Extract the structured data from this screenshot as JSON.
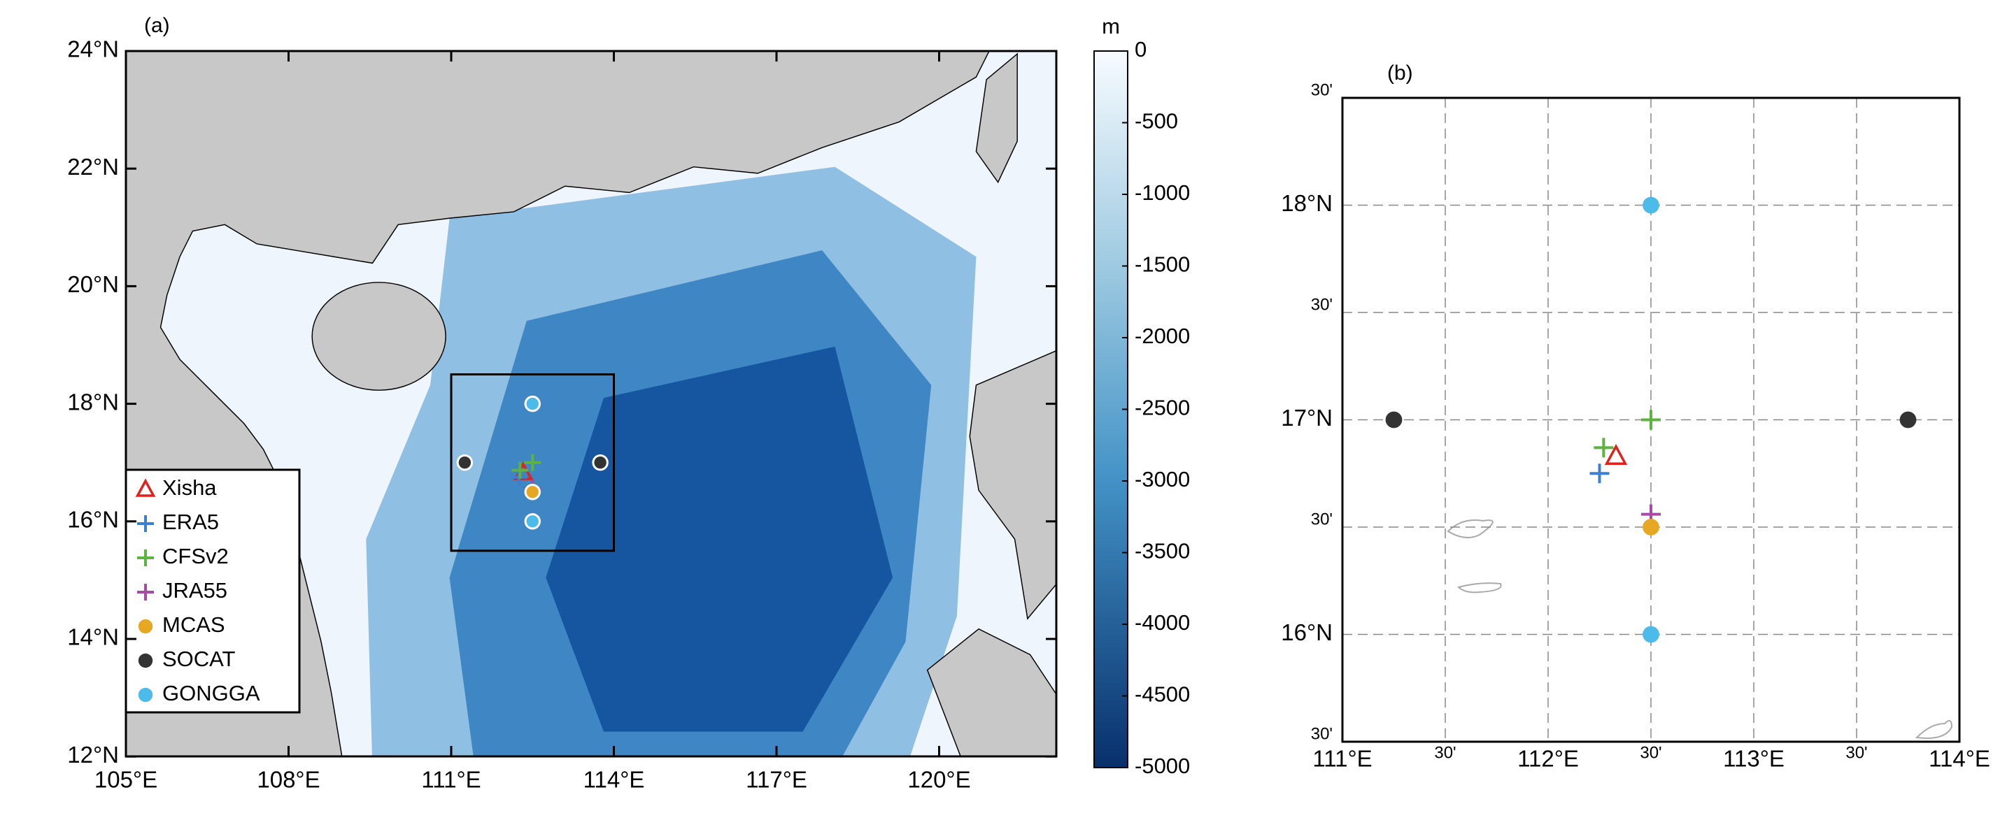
{
  "panel_a": {
    "label": "(a)",
    "lon_ticks": [
      {
        "value": 105,
        "label": "105°E"
      },
      {
        "value": 108,
        "label": "108°E"
      },
      {
        "value": 111,
        "label": "111°E"
      },
      {
        "value": 114,
        "label": "114°E"
      },
      {
        "value": 117,
        "label": "117°E"
      },
      {
        "value": 120,
        "label": "120°E"
      }
    ],
    "lat_ticks": [
      {
        "value": 24,
        "label": "24°N"
      },
      {
        "value": 22,
        "label": "22°N"
      },
      {
        "value": 20,
        "label": "20°N"
      },
      {
        "value": 18,
        "label": "18°N"
      },
      {
        "value": 16,
        "label": "16°N"
      },
      {
        "value": 14,
        "label": "14°N"
      },
      {
        "value": 12,
        "label": "12°N"
      }
    ],
    "colorbar": {
      "unit": "m",
      "range": [
        0,
        -5000
      ],
      "ticks": [
        0,
        -500,
        -1000,
        -1500,
        -2000,
        -2500,
        -3000,
        -3500,
        -4000,
        -4500,
        -5000
      ]
    }
  },
  "panel_b": {
    "label": "(b)",
    "lon_range": [
      111,
      114
    ],
    "lat_range": [
      15.5,
      18.5
    ],
    "lon_ticks": [
      {
        "value": 111,
        "label": "111°E"
      },
      {
        "value": 111.5,
        "label": "30'"
      },
      {
        "value": 112,
        "label": "112°E"
      },
      {
        "value": 112.5,
        "label": "30'"
      },
      {
        "value": 113,
        "label": "113°E"
      },
      {
        "value": 113.5,
        "label": "30'"
      },
      {
        "value": 114,
        "label": "114°E"
      }
    ],
    "lat_ticks": [
      {
        "value": 18.5,
        "label": "30'"
      },
      {
        "value": 18,
        "label": "18°N"
      },
      {
        "value": 17.5,
        "label": "30'"
      },
      {
        "value": 17,
        "label": "17°N"
      },
      {
        "value": 16.5,
        "label": "30'"
      },
      {
        "value": 16,
        "label": "16°N"
      },
      {
        "value": 15.5,
        "label": "30'"
      }
    ]
  },
  "stations": [
    {
      "name": "Xisha",
      "marker": "triangle",
      "color": "#e3201b",
      "lon": [
        112.33
      ],
      "lat": [
        16.83
      ]
    },
    {
      "name": "ERA5",
      "marker": "plus",
      "color": "#3d7fd1",
      "lon": [
        112.25
      ],
      "lat": [
        16.75
      ]
    },
    {
      "name": "CFSv2",
      "marker": "plus",
      "color": "#5cb33f",
      "lon": [
        112.5,
        112.27
      ],
      "lat": [
        17,
        16.87
      ]
    },
    {
      "name": "JRA55",
      "marker": "plus",
      "color": "#a64ca6",
      "lon": [
        112.5
      ],
      "lat": [
        16.56
      ]
    },
    {
      "name": "MCAS",
      "marker": "dot",
      "color": "#e6a823",
      "lon": [
        112.5
      ],
      "lat": [
        16.5
      ]
    },
    {
      "name": "SOCAT",
      "marker": "dot",
      "color": "#333333",
      "lon": [
        111.25,
        113.75
      ],
      "lat": [
        17,
        17
      ]
    },
    {
      "name": "GONGGA",
      "marker": "dot",
      "color": "#4dbbea",
      "lon": [
        112.5,
        112.5
      ],
      "lat": [
        18,
        16
      ]
    }
  ]
}
